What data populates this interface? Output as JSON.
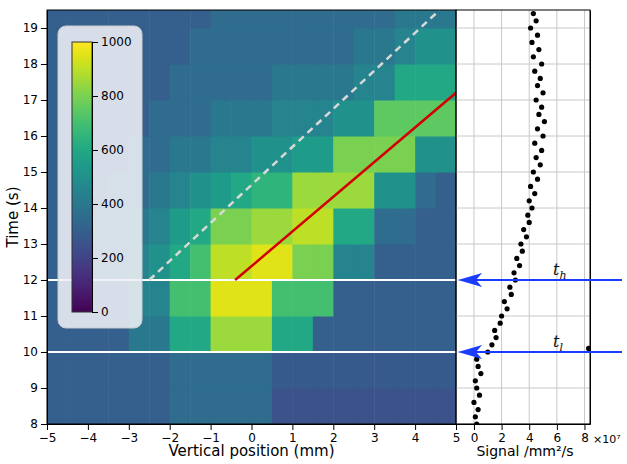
{
  "chart_data": [
    {
      "type": "heatmap",
      "x_label": "Vertical position (mm)",
      "y_label": "Time (s)",
      "xlim": [
        -5,
        5
      ],
      "xticks": [
        {
          "value": -5,
          "label": "−5"
        },
        {
          "value": -4,
          "label": "−4"
        },
        {
          "value": -3,
          "label": "−3"
        },
        {
          "value": -2,
          "label": "−2"
        },
        {
          "value": -1,
          "label": "−1"
        },
        0,
        1,
        2,
        3,
        4,
        5
      ],
      "ylim": [
        8,
        19.5
      ],
      "yticks": [
        8,
        9,
        10,
        11,
        12,
        13,
        14,
        15,
        16,
        17,
        18,
        19
      ],
      "x_edges": [
        -5,
        -4.5,
        -4,
        -3.5,
        -3,
        -2.5,
        -2,
        -1.5,
        -1,
        -0.5,
        0,
        0.5,
        1,
        1.5,
        2,
        2.5,
        3,
        3.5,
        4,
        4.5,
        5
      ],
      "y_edges": [
        8,
        9,
        10,
        11,
        12,
        13,
        14,
        15,
        16,
        17,
        18,
        19,
        20
      ],
      "cells": [
        [
          300,
          300,
          300,
          300,
          300,
          300,
          350,
          350,
          350,
          350,
          350,
          250,
          250,
          250,
          250,
          250,
          250,
          250,
          250,
          250
        ],
        [
          300,
          300,
          300,
          300,
          300,
          300,
          350,
          350,
          350,
          350,
          350,
          280,
          280,
          280,
          280,
          280,
          280,
          280,
          280,
          280
        ],
        [
          300,
          300,
          300,
          300,
          400,
          400,
          600,
          600,
          850,
          850,
          850,
          600,
          600,
          300,
          300,
          300,
          300,
          300,
          300,
          300
        ],
        [
          300,
          300,
          300,
          300,
          450,
          450,
          700,
          700,
          950,
          950,
          950,
          700,
          700,
          700,
          300,
          300,
          300,
          300,
          300,
          300
        ],
        [
          300,
          300,
          350,
          350,
          450,
          500,
          600,
          700,
          900,
          900,
          950,
          950,
          800,
          800,
          450,
          450,
          300,
          300,
          300,
          300
        ],
        [
          300,
          300,
          350,
          350,
          400,
          450,
          550,
          600,
          800,
          800,
          850,
          850,
          900,
          900,
          600,
          600,
          350,
          350,
          300,
          300
        ],
        [
          300,
          300,
          300,
          350,
          350,
          400,
          450,
          500,
          550,
          600,
          650,
          650,
          850,
          850,
          850,
          850,
          500,
          500,
          350,
          300
        ],
        [
          300,
          300,
          300,
          300,
          350,
          350,
          400,
          400,
          450,
          450,
          500,
          500,
          550,
          550,
          800,
          800,
          800,
          800,
          500,
          500
        ],
        [
          300,
          300,
          300,
          300,
          300,
          350,
          350,
          350,
          400,
          400,
          400,
          450,
          450,
          450,
          500,
          500,
          750,
          750,
          750,
          750
        ],
        [
          300,
          300,
          300,
          300,
          300,
          300,
          350,
          350,
          350,
          350,
          350,
          400,
          400,
          400,
          400,
          450,
          450,
          600,
          600,
          600
        ],
        [
          300,
          300,
          300,
          300,
          300,
          300,
          300,
          350,
          350,
          350,
          350,
          350,
          350,
          350,
          350,
          400,
          400,
          450,
          500,
          500
        ],
        [
          300,
          300,
          300,
          300,
          300,
          300,
          300,
          300,
          350,
          350,
          350,
          350,
          350,
          350,
          350,
          350,
          350,
          400,
          400,
          400
        ]
      ],
      "colorbar": {
        "range": [
          0,
          1000
        ],
        "ticks": [
          0,
          200,
          400,
          600,
          800,
          1000
        ]
      },
      "series": [
        {
          "type": "line",
          "color": "#d40000",
          "line_style": "solid",
          "x": [
            -0.4,
            5
          ],
          "y": [
            12,
            17.2
          ]
        },
        {
          "type": "line",
          "color": "#d8d8d8",
          "line_style": "dashed",
          "x": [
            -2.5,
            4.6
          ],
          "y": [
            12,
            19.5
          ]
        }
      ],
      "hlines": [
        10,
        12
      ]
    },
    {
      "type": "scatter",
      "x_label": "Signal /mm²/s",
      "offset_label": "×10⁷",
      "xlim": [
        -1.3,
        8.4
      ],
      "xticks": [
        0,
        2,
        4,
        6,
        8
      ],
      "ylim": [
        8,
        19.5
      ],
      "yticks": [
        8,
        9,
        10,
        11,
        12,
        13,
        14,
        15,
        16,
        17,
        18,
        19
      ],
      "tick_labels": "x",
      "grid": true,
      "color": "#000000",
      "marker": "circle",
      "x": [
        0.2,
        0.1,
        0.3,
        0.0,
        0.4,
        0.2,
        0.1,
        0.5,
        0.3,
        0.2,
        1.0,
        1.3,
        1.6,
        1.5,
        1.9,
        2.0,
        2.4,
        2.2,
        2.7,
        2.6,
        3.0,
        2.9,
        3.3,
        3.1,
        3.5,
        3.4,
        3.8,
        3.6,
        4.0,
        3.9,
        4.2,
        4.0,
        4.4,
        4.1,
        4.6,
        4.3,
        4.8,
        4.5,
        4.9,
        4.4,
        5.0,
        4.6,
        5.1,
        4.7,
        4.9,
        4.5,
        5.0,
        4.6,
        4.8,
        4.4,
        4.9,
        4.3,
        4.7,
        4.2,
        4.6,
        4.1,
        4.5,
        4.3,
        8.3
      ],
      "y": [
        8.0,
        8.2,
        8.4,
        8.6,
        8.8,
        9.0,
        9.2,
        9.4,
        9.6,
        9.8,
        10.0,
        10.2,
        10.4,
        10.6,
        10.8,
        11.0,
        11.2,
        11.4,
        11.6,
        11.8,
        12.0,
        12.2,
        12.4,
        12.6,
        12.8,
        13.0,
        13.2,
        13.4,
        13.6,
        13.8,
        14.0,
        14.2,
        14.4,
        14.6,
        14.8,
        15.0,
        15.2,
        15.4,
        15.6,
        15.8,
        16.0,
        16.2,
        16.4,
        16.6,
        16.8,
        17.0,
        17.2,
        17.4,
        17.6,
        17.8,
        18.0,
        18.2,
        18.4,
        18.6,
        18.8,
        19.0,
        19.2,
        19.4,
        10.1
      ],
      "annotations": [
        {
          "text": "t",
          "subscript": "h",
          "y": 12,
          "color": "#1a3cff"
        },
        {
          "text": "t",
          "subscript": "l",
          "y": 10,
          "color": "#1a3cff"
        }
      ]
    }
  ]
}
